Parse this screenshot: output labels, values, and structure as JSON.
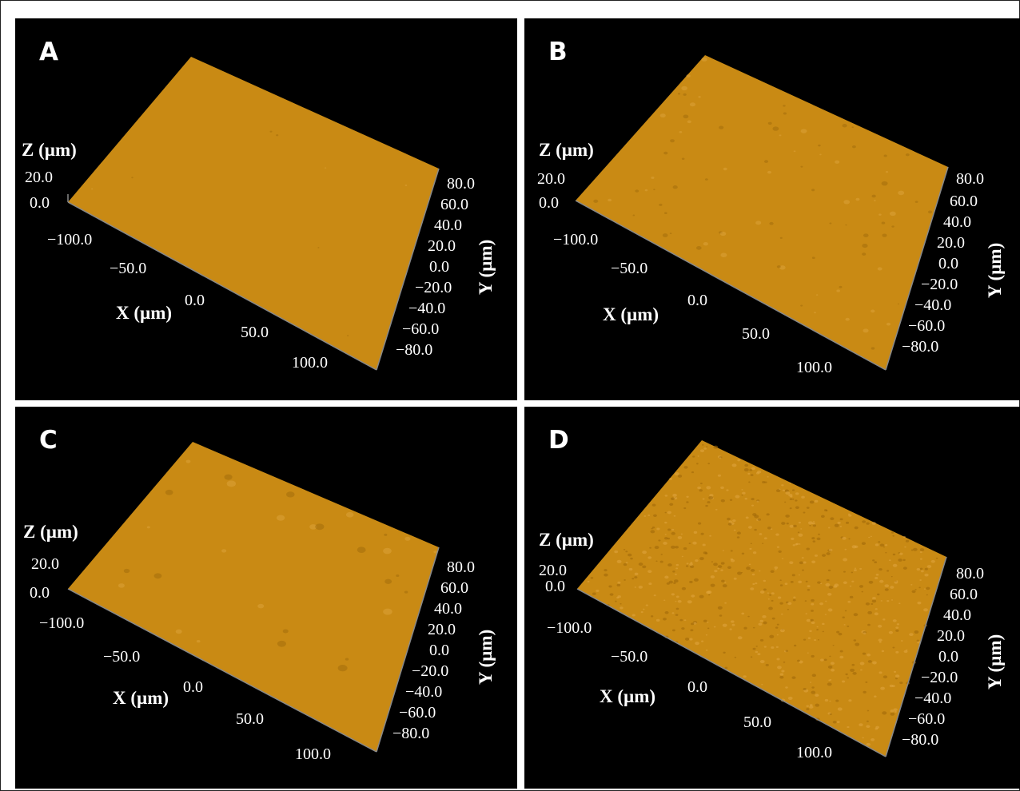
{
  "panels": [
    {
      "label": "A",
      "z_title": "Z (µm)",
      "x_title": "X (µm)",
      "y_title": "Y (µm)",
      "z_ticks": [
        "20.0",
        "0.0"
      ],
      "x_ticks": [
        "−100.0",
        "−50.0",
        "0.0",
        "50.0",
        "100.0"
      ],
      "y_ticks": [
        "80.0",
        "60.0",
        "40.0",
        "20.0",
        "0.0",
        "−20.0",
        "−40.0",
        "−60.0",
        "−80.0"
      ],
      "surface": "smooth"
    },
    {
      "label": "B",
      "z_title": "Z (µm)",
      "x_title": "X (µm)",
      "y_title": "Y (µm)",
      "z_ticks": [
        "20.0",
        "0.0"
      ],
      "x_ticks": [
        "−100.0",
        "−50.0",
        "0.0",
        "50.0",
        "100.0"
      ],
      "y_ticks": [
        "80.0",
        "60.0",
        "40.0",
        "20.0",
        "0.0",
        "−20.0",
        "−40.0",
        "−60.0",
        "−80.0"
      ],
      "surface": "moderately rough"
    },
    {
      "label": "C",
      "z_title": "Z (µm)",
      "x_title": "X (µm)",
      "y_title": "Y (µm)",
      "z_ticks": [
        "20.0",
        "0.0"
      ],
      "x_ticks": [
        "−100.0",
        "−50.0",
        "0.0",
        "50.0",
        "100.0"
      ],
      "y_ticks": [
        "80.0",
        "60.0",
        "40.0",
        "20.0",
        "0.0",
        "−20.0",
        "−40.0",
        "−60.0",
        "−80.0"
      ],
      "surface": "sparse bumps"
    },
    {
      "label": "D",
      "z_title": "Z (µm)",
      "x_title": "X (µm)",
      "y_title": "Y (µm)",
      "z_ticks": [
        "20.0",
        "0.0"
      ],
      "x_ticks": [
        "−100.0",
        "−50.0",
        "0.0",
        "50.0",
        "100.0"
      ],
      "y_ticks": [
        "80.0",
        "60.0",
        "40.0",
        "20.0",
        "0.0",
        "−20.0",
        "−40.0",
        "−60.0",
        "−80.0"
      ],
      "surface": "very rough"
    }
  ],
  "colors": {
    "surface": "#c8860f",
    "surface_light": "#e0a640",
    "surface_dark": "#9c6608",
    "background": "#000000"
  }
}
